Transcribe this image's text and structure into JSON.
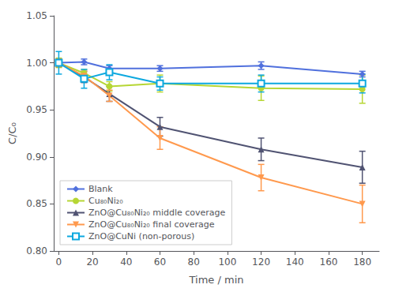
{
  "chart_data": {
    "type": "line",
    "xlabel": "Time / min",
    "ylabel": "C/C₀",
    "x": [
      0,
      15,
      30,
      60,
      120,
      180
    ],
    "series": [
      {
        "name": "Blank",
        "marker": "diamond",
        "values": [
          1.0,
          1.001,
          0.994,
          0.994,
          0.997,
          0.988
        ],
        "yerr": [
          0.003,
          0.003,
          0.003,
          0.003,
          0.004,
          0.003
        ]
      },
      {
        "name": "Cu₈₀Ni₂₀",
        "marker": "circle",
        "values": [
          1.0,
          0.989,
          0.975,
          0.978,
          0.973,
          0.972
        ],
        "yerr": [
          0.005,
          0.004,
          0.005,
          0.009,
          0.013,
          0.015
        ]
      },
      {
        "name": "ZnO@Cu₈₀Ni₂₀ middle coverage",
        "marker": "triangle-up",
        "values": [
          1.0,
          0.985,
          0.967,
          0.932,
          0.908,
          0.889
        ],
        "yerr": [
          0.004,
          0.006,
          0.008,
          0.01,
          0.012,
          0.017
        ]
      },
      {
        "name": "ZnO@Cu₈₀Ni₂₀ final coverage",
        "marker": "triangle-down",
        "values": [
          1.0,
          0.986,
          0.965,
          0.92,
          0.878,
          0.85
        ],
        "yerr": [
          0.004,
          0.005,
          0.006,
          0.012,
          0.014,
          0.02
        ]
      },
      {
        "name": "ZnO@CuNi (non-porous)",
        "marker": "square-open",
        "values": [
          1.0,
          0.983,
          0.99,
          0.978,
          0.978,
          0.978
        ],
        "yerr": [
          0.012,
          0.01,
          0.008,
          0.007,
          0.009,
          0.01
        ]
      }
    ],
    "xlim": [
      -3,
      190
    ],
    "xticks": [
      0,
      20,
      40,
      60,
      80,
      100,
      120,
      140,
      160,
      180
    ],
    "ylim": [
      0.8,
      1.05
    ],
    "yticks": [
      {
        "value": 0.8,
        "label": "0.80"
      },
      0.85,
      {
        "value": 0.9,
        "label": "0.90"
      },
      0.95,
      {
        "value": 1.0,
        "label": "1.00"
      },
      1.05
    ],
    "grid": false,
    "legend": "lower left"
  }
}
